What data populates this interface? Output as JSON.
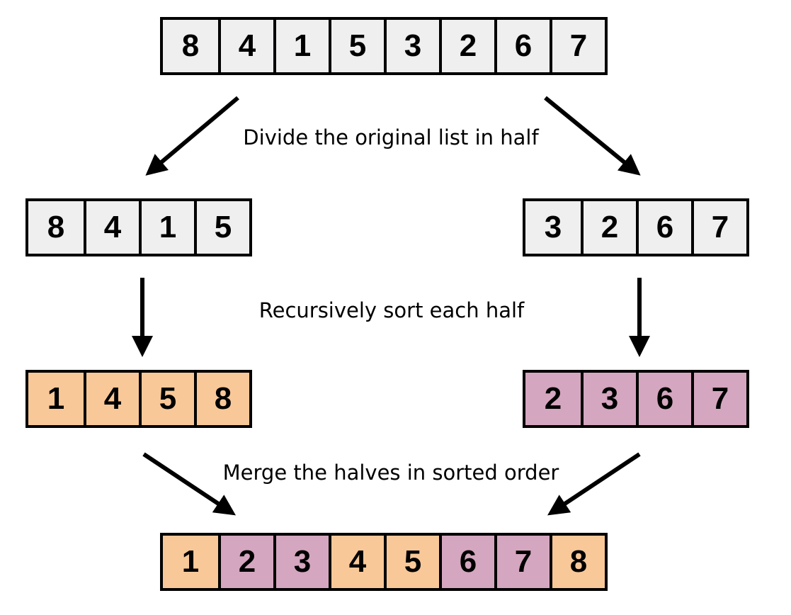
{
  "rows": {
    "original": {
      "cells": [
        {
          "value": "8",
          "color": "#efeff0"
        },
        {
          "value": "4",
          "color": "#efeff0"
        },
        {
          "value": "1",
          "color": "#efeff0"
        },
        {
          "value": "5",
          "color": "#efeff0"
        },
        {
          "value": "3",
          "color": "#efeff0"
        },
        {
          "value": "2",
          "color": "#efeff0"
        },
        {
          "value": "6",
          "color": "#efeff0"
        },
        {
          "value": "7",
          "color": "#efeff0"
        }
      ]
    },
    "left_half": {
      "cells": [
        {
          "value": "8",
          "color": "#efeff0"
        },
        {
          "value": "4",
          "color": "#efeff0"
        },
        {
          "value": "1",
          "color": "#efeff0"
        },
        {
          "value": "5",
          "color": "#efeff0"
        }
      ]
    },
    "right_half": {
      "cells": [
        {
          "value": "3",
          "color": "#efeff0"
        },
        {
          "value": "2",
          "color": "#efeff0"
        },
        {
          "value": "6",
          "color": "#efeff0"
        },
        {
          "value": "7",
          "color": "#efeff0"
        }
      ]
    },
    "left_sorted": {
      "cells": [
        {
          "value": "1",
          "color": "#f9c898"
        },
        {
          "value": "4",
          "color": "#f9c898"
        },
        {
          "value": "5",
          "color": "#f9c898"
        },
        {
          "value": "8",
          "color": "#f9c898"
        }
      ]
    },
    "right_sorted": {
      "cells": [
        {
          "value": "2",
          "color": "#d5a6bf"
        },
        {
          "value": "3",
          "color": "#d5a6bf"
        },
        {
          "value": "6",
          "color": "#d5a6bf"
        },
        {
          "value": "7",
          "color": "#d5a6bf"
        }
      ]
    },
    "merged": {
      "cells": [
        {
          "value": "1",
          "color": "#f9c898"
        },
        {
          "value": "2",
          "color": "#d5a6bf"
        },
        {
          "value": "3",
          "color": "#d5a6bf"
        },
        {
          "value": "4",
          "color": "#f9c898"
        },
        {
          "value": "5",
          "color": "#f9c898"
        },
        {
          "value": "6",
          "color": "#d5a6bf"
        },
        {
          "value": "7",
          "color": "#d5a6bf"
        },
        {
          "value": "8",
          "color": "#f9c898"
        }
      ]
    }
  },
  "captions": {
    "divide": "Divide the original list in half",
    "recurse": "Recursively sort each half",
    "merge": "Merge the halves in sorted order"
  },
  "colors": {
    "unsorted": "#efeff0",
    "left_sorted": "#f9c898",
    "right_sorted": "#d5a6bf",
    "outline": "#000000"
  }
}
